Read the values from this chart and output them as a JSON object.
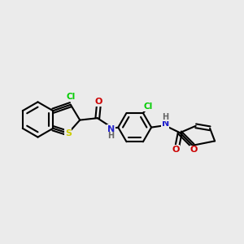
{
  "background_color": "#ebebeb",
  "bond_color": "black",
  "bond_width": 1.5,
  "atom_colors": {
    "Cl": "#00cc00",
    "S": "#cccc00",
    "N": "#2222cc",
    "O": "#cc0000",
    "H": "#666666"
  },
  "font_size": 7.5
}
